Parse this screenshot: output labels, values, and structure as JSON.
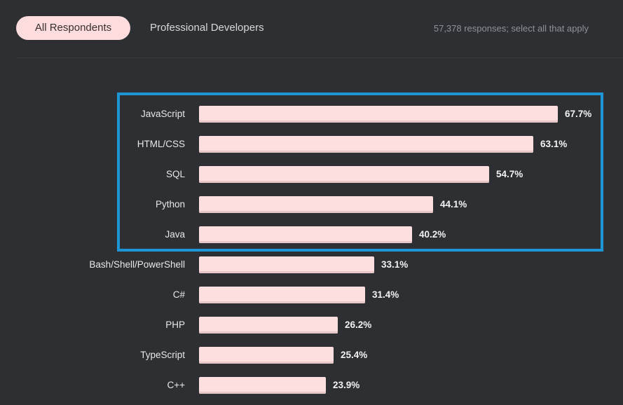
{
  "tabs": [
    {
      "label": "All Respondents",
      "active": true
    },
    {
      "label": "Professional Developers",
      "active": false
    }
  ],
  "note": "57,378 responses; select all that apply",
  "colors": {
    "background": "#2d2f33",
    "bar": "#fddfdf",
    "highlight": "#1d96d6"
  },
  "chart_data": {
    "type": "bar",
    "orientation": "horizontal",
    "title": "",
    "categories": [
      "JavaScript",
      "HTML/CSS",
      "SQL",
      "Python",
      "Java",
      "Bash/Shell/PowerShell",
      "C#",
      "PHP",
      "TypeScript",
      "C++"
    ],
    "values": [
      67.7,
      63.1,
      54.7,
      44.1,
      40.2,
      33.1,
      31.4,
      26.2,
      25.4,
      23.9
    ],
    "value_labels": [
      "67.7%",
      "63.1%",
      "54.7%",
      "44.1%",
      "40.2%",
      "33.1%",
      "31.4%",
      "26.2%",
      "25.4%",
      "23.9%"
    ],
    "xlabel": "",
    "ylabel": "",
    "unit": "%",
    "grid": false,
    "annotations": [
      "Blue box highlights top 5: JavaScript, HTML/CSS, SQL, Python, Java"
    ]
  }
}
